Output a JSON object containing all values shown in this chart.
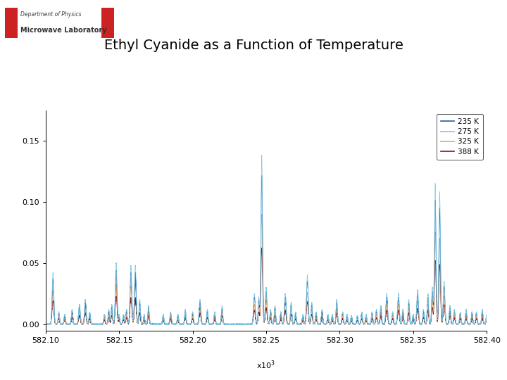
{
  "title": "Ethyl Cyanide as a Function of Temperature",
  "title_fontsize": 14,
  "xlim": [
    582100,
    582400
  ],
  "ylim": [
    -0.005,
    0.175
  ],
  "yticks": [
    0.0,
    0.05,
    0.1,
    0.15
  ],
  "xtick_labels": [
    "582.10",
    "582.15",
    "582.20",
    "582.25",
    "582.30",
    "582.35",
    "582.40"
  ],
  "xtick_values": [
    582100,
    582150,
    582200,
    582250,
    582300,
    582350,
    582400
  ],
  "colors": {
    "235K": "#1a5fa8",
    "275K": "#7ec8e3",
    "325K": "#d4a96a",
    "388K": "#7b1618"
  },
  "legend_labels": [
    "235 K",
    "275 K",
    "325 K",
    "388 K"
  ],
  "background_color": "#ffffff"
}
